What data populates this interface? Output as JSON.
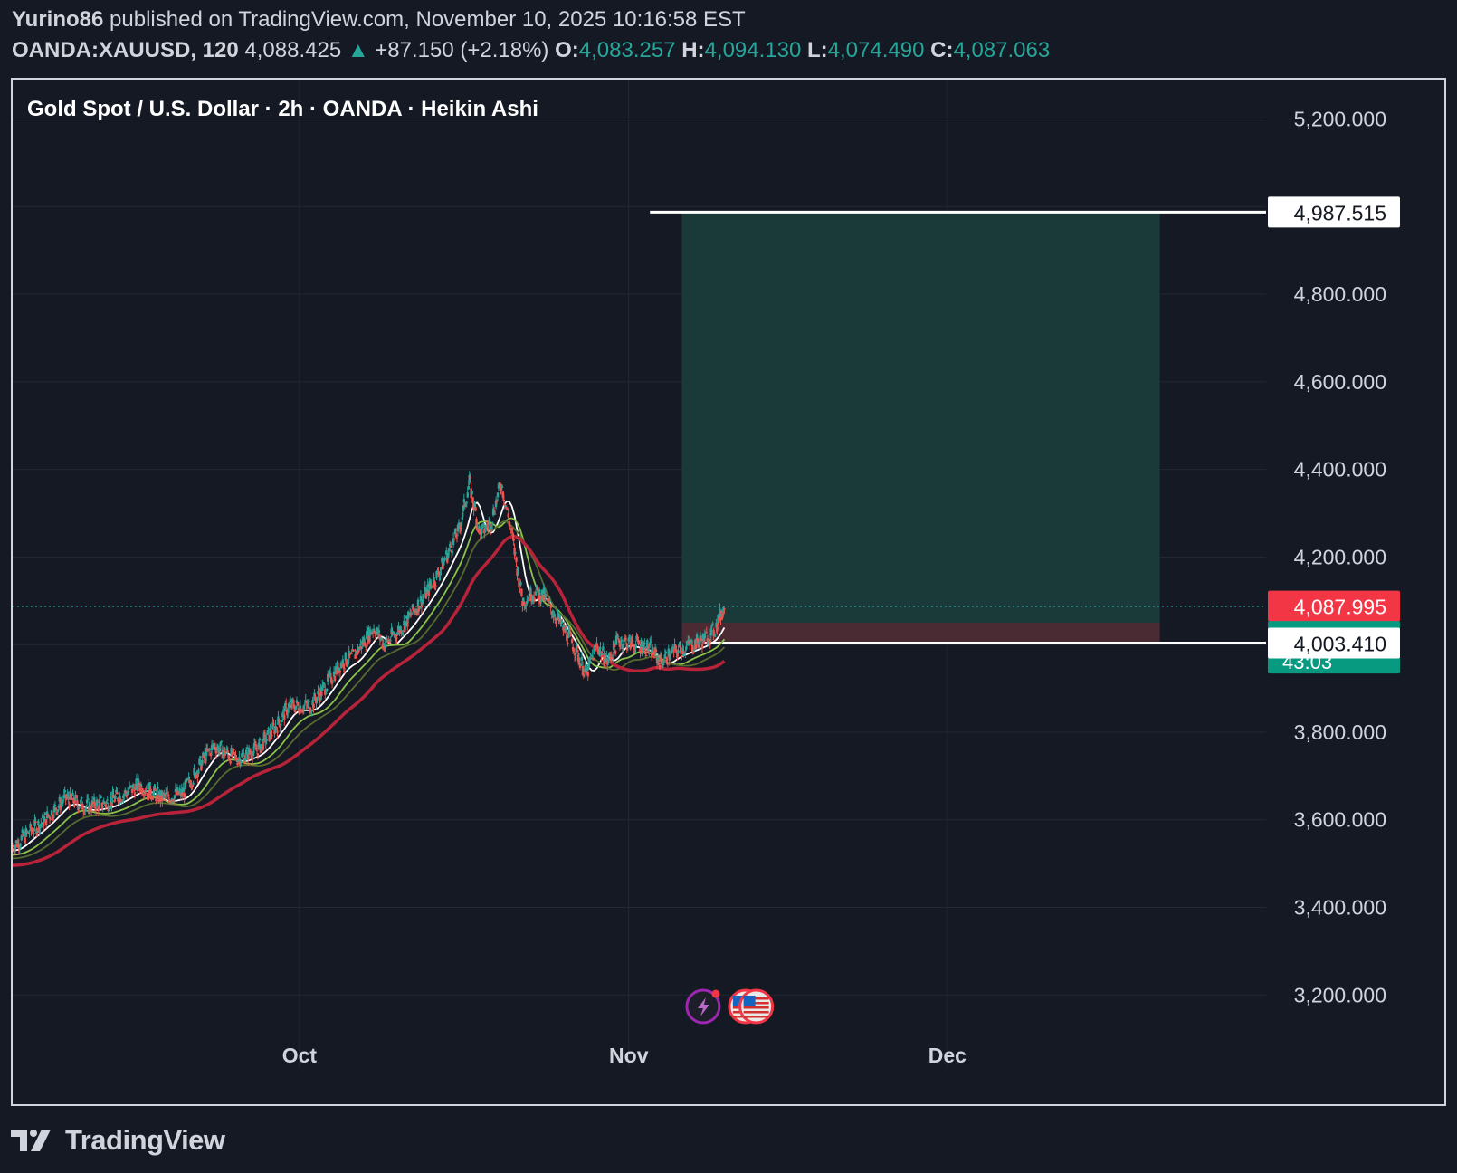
{
  "header": {
    "author": "Yurino86",
    "published_text": "published on TradingView.com, November 10, 2025 10:16:58 EST",
    "symbol": "OANDA:XAUUSD, 120",
    "last": "4,088.425",
    "change_arrow": "▲",
    "change": "+87.150 (+2.18%)",
    "o_label": "O:",
    "o_value": "4,083.257",
    "h_label": "H:",
    "h_value": "4,094.130",
    "l_label": "L:",
    "l_value": "4,074.490",
    "c_label": "C:",
    "c_value": "4,087.063"
  },
  "brand": {
    "name": "TradingView",
    "icon": "tradingview-logo-icon"
  },
  "colors": {
    "up": "#26a69a",
    "down": "#ef5350",
    "target_zone": "#1a3a3a",
    "stop_zone": "#4a2a33",
    "ma_white": "#ffffff",
    "ma_light_green": "#8bc34a",
    "ma_dark_green": "#556b2f",
    "ma_red": "#b8233a",
    "price_red_label": "#f23645",
    "price_green_label": "#089981"
  },
  "chart_data": {
    "type": "candlestick",
    "title": "Gold Spot / U.S. Dollar · 2h · OANDA · Heikin Ashi",
    "ylim": [
      3120,
      5290
    ],
    "x_range": [
      "2025-09-04",
      "2025-12-31"
    ],
    "x_ticks": [
      {
        "date": "2025-10-01",
        "label": "Oct"
      },
      {
        "date": "2025-11-01",
        "label": "Nov"
      },
      {
        "date": "2025-12-01",
        "label": "Dec"
      }
    ],
    "y_ticks": [
      {
        "value": 3200,
        "label": "3,200.000"
      },
      {
        "value": 3400,
        "label": "3,400.000"
      },
      {
        "value": 3600,
        "label": "3,600.000"
      },
      {
        "value": 3800,
        "label": "3,800.000"
      },
      {
        "value": 4000,
        "label": "4,000.000"
      },
      {
        "value": 4200,
        "label": "4,200.000"
      },
      {
        "value": 4400,
        "label": "4,400.000"
      },
      {
        "value": 4600,
        "label": "4,600.000"
      },
      {
        "value": 4800,
        "label": "4,800.000"
      },
      {
        "value": 5000,
        "label": "5,000.000"
      },
      {
        "value": 5200,
        "label": "5,200.000"
      }
    ],
    "price_path": [
      [
        "2025-09-04",
        3540
      ],
      [
        "2025-09-05",
        3560
      ],
      [
        "2025-09-07",
        3600
      ],
      [
        "2025-09-09",
        3650
      ],
      [
        "2025-09-11",
        3630
      ],
      [
        "2025-09-13",
        3640
      ],
      [
        "2025-09-16",
        3680
      ],
      [
        "2025-09-18",
        3650
      ],
      [
        "2025-09-20",
        3660
      ],
      [
        "2025-09-22",
        3740
      ],
      [
        "2025-09-23",
        3770
      ],
      [
        "2025-09-25",
        3740
      ],
      [
        "2025-09-27",
        3760
      ],
      [
        "2025-09-29",
        3820
      ],
      [
        "2025-09-30",
        3860
      ],
      [
        "2025-10-02",
        3860
      ],
      [
        "2025-10-03",
        3890
      ],
      [
        "2025-10-05",
        3960
      ],
      [
        "2025-10-06",
        3970
      ],
      [
        "2025-10-08",
        4040
      ],
      [
        "2025-10-09",
        4000
      ],
      [
        "2025-10-11",
        4050
      ],
      [
        "2025-10-13",
        4120
      ],
      [
        "2025-10-14",
        4160
      ],
      [
        "2025-10-16",
        4260
      ],
      [
        "2025-10-17",
        4370
      ],
      [
        "2025-10-18",
        4250
      ],
      [
        "2025-10-19",
        4280
      ],
      [
        "2025-10-20",
        4370
      ],
      [
        "2025-10-21",
        4250
      ],
      [
        "2025-10-22",
        4100
      ],
      [
        "2025-10-23",
        4120
      ],
      [
        "2025-10-24",
        4110
      ],
      [
        "2025-10-25",
        4070
      ],
      [
        "2025-10-27",
        3990
      ],
      [
        "2025-10-28",
        3930
      ],
      [
        "2025-10-29",
        4000
      ],
      [
        "2025-10-30",
        3960
      ],
      [
        "2025-10-31",
        4010
      ],
      [
        "2025-11-02",
        4000
      ],
      [
        "2025-11-03",
        3990
      ],
      [
        "2025-11-04",
        3960
      ],
      [
        "2025-11-05",
        3980
      ],
      [
        "2025-11-06",
        3990
      ],
      [
        "2025-11-07",
        4000
      ],
      [
        "2025-11-08",
        4010
      ],
      [
        "2025-11-09",
        4030
      ],
      [
        "2025-11-10",
        4088
      ]
    ],
    "moving_averages": [
      {
        "color": "#ffffff",
        "lag_days": 0.6,
        "offset": -25
      },
      {
        "color": "#8bc34a",
        "lag_days": 1.2,
        "offset": -50
      },
      {
        "color": "#556b2f",
        "lag_days": 1.8,
        "offset": -70
      },
      {
        "color": "#b8233a",
        "lag_days": 3.0,
        "offset": -110
      }
    ],
    "position_tool": {
      "start": "2025-11-06",
      "end": "2025-12-21",
      "line_start": "2025-11-03",
      "target": 4987.515,
      "entry": 4050,
      "stop": 4003.41
    },
    "price_labels": [
      {
        "value": 4987.515,
        "label": "4,987.515",
        "style": "white"
      },
      {
        "value": 4087.995,
        "label": "4,087.995",
        "style": "red"
      },
      {
        "value": 4087.063,
        "label": "4,087.063",
        "sub": "43:03",
        "style": "green"
      },
      {
        "value": 4003.41,
        "label": "4,003.410",
        "style": "white"
      }
    ],
    "current_price": 4087.063,
    "event_icons": [
      {
        "name": "lightning-event-icon",
        "date": "2025-11-08"
      },
      {
        "name": "us-flag-event-icon",
        "date": "2025-11-12"
      },
      {
        "name": "us-flag-event-icon",
        "date": "2025-11-13"
      }
    ]
  }
}
